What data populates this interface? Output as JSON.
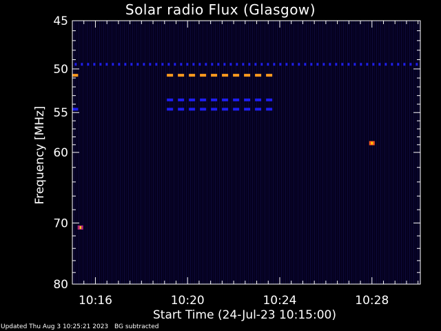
{
  "chart_data": {
    "type": "heatmap",
    "title": "Solar radio Flux (Glasgow)",
    "xlabel": "Start Time (24-Jul-23 10:15:00)",
    "ylabel": "Frequency [MHz]",
    "x_unit": "minutes after 10:15:00",
    "xlim": [
      0,
      15.1
    ],
    "ylim": [
      45,
      80
    ],
    "y_scale": "log",
    "y_reversed": true,
    "x_ticks": [
      {
        "value": 1,
        "label": "10:16"
      },
      {
        "value": 5,
        "label": "10:20"
      },
      {
        "value": 9,
        "label": "10:24"
      },
      {
        "value": 13,
        "label": "10:28"
      }
    ],
    "y_ticks": [
      {
        "value": 45,
        "label": "45"
      },
      {
        "value": 50,
        "label": "50"
      },
      {
        "value": 55,
        "label": "55"
      },
      {
        "value": 60,
        "label": "60"
      },
      {
        "value": 70,
        "label": "70"
      },
      {
        "value": 80,
        "label": "80"
      }
    ],
    "y_minor_ticks": [
      46,
      47,
      48,
      49,
      51,
      52,
      53,
      54,
      56,
      57,
      58,
      59,
      62,
      64,
      66,
      68,
      72,
      74,
      76,
      78
    ],
    "x_minor_step": 0.5,
    "background_color": "#05001e",
    "interference_bands": [
      {
        "freq": 49.5,
        "x_start": 0.1,
        "x_end": 15.0,
        "color": "#1e1ee6",
        "dash": "dotted"
      },
      {
        "freq": 50.7,
        "x_start": 0.0,
        "x_end": 0.25,
        "color": "#ff9a1e",
        "dash": "solid"
      },
      {
        "freq": 50.7,
        "x_start": 4.1,
        "x_end": 8.8,
        "color": "#ff9a1e",
        "dash": "dashed"
      },
      {
        "freq": 53.5,
        "x_start": 4.1,
        "x_end": 8.8,
        "color": "#1e1ef0",
        "dash": "dashed"
      },
      {
        "freq": 54.6,
        "x_start": 4.1,
        "x_end": 8.8,
        "color": "#1e1ef0",
        "dash": "dashed"
      },
      {
        "freq": 54.6,
        "x_start": 0.0,
        "x_end": 0.25,
        "color": "#1e1ef0",
        "dash": "solid"
      }
    ],
    "hotspots": [
      {
        "x": 13.0,
        "freq": 58.8,
        "color": "#ff5a1e"
      },
      {
        "x": 0.35,
        "freq": 70.7,
        "color": "#b4287a"
      }
    ]
  },
  "footer": {
    "updated": "Updated Thu Aug  3 10:25:21 2023",
    "note": "BG subtracted"
  }
}
